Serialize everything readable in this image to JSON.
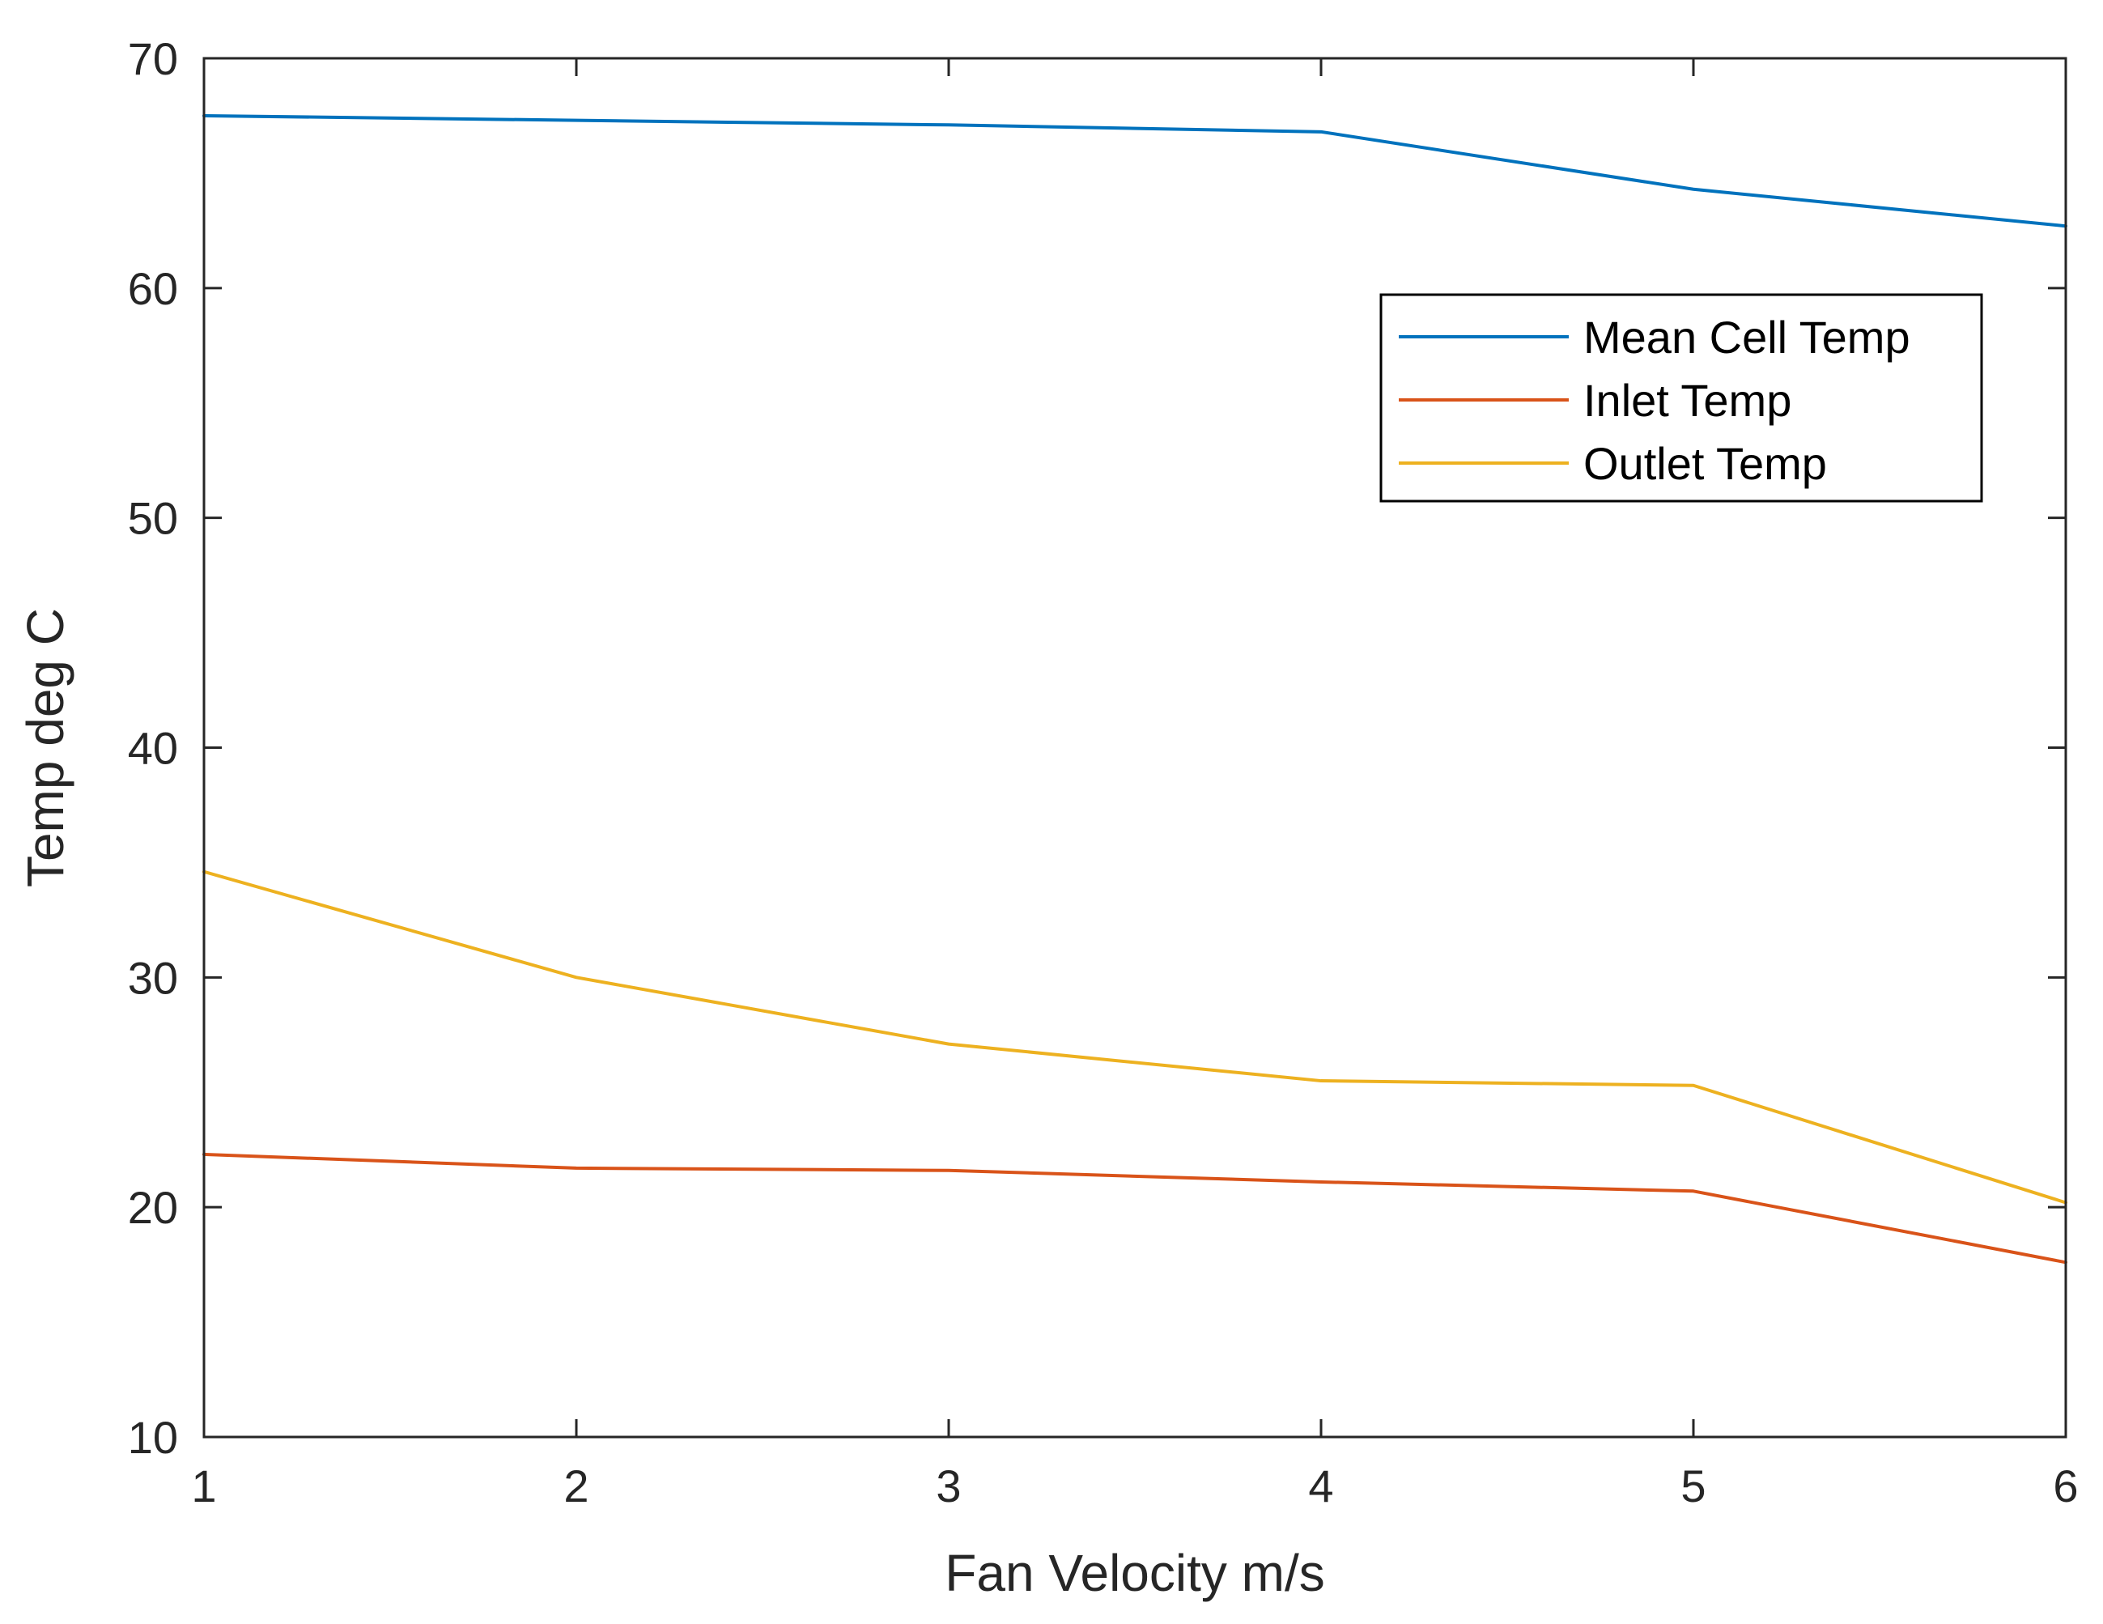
{
  "chart_data": {
    "type": "line",
    "title": "",
    "xlabel": "Fan Velocity m/s",
    "ylabel": "Temp deg C",
    "x": [
      1,
      2,
      3,
      4,
      5,
      6
    ],
    "xlim": [
      1,
      6
    ],
    "ylim": [
      10,
      70
    ],
    "xticks": [
      1,
      2,
      3,
      4,
      5,
      6
    ],
    "yticks": [
      10,
      20,
      30,
      40,
      50,
      60,
      70
    ],
    "grid": false,
    "legend_position": "top-right",
    "series": [
      {
        "name": "Mean Cell Temp",
        "color": "#0072BD",
        "values": [
          67.5,
          67.3,
          67.1,
          66.8,
          64.3,
          62.7
        ]
      },
      {
        "name": "Inlet Temp",
        "color": "#D95319",
        "values": [
          22.3,
          21.7,
          21.6,
          21.1,
          20.7,
          17.6
        ]
      },
      {
        "name": "Outlet Temp",
        "color": "#EDB120",
        "values": [
          34.6,
          30.0,
          27.1,
          25.5,
          25.3,
          20.2
        ]
      }
    ]
  }
}
